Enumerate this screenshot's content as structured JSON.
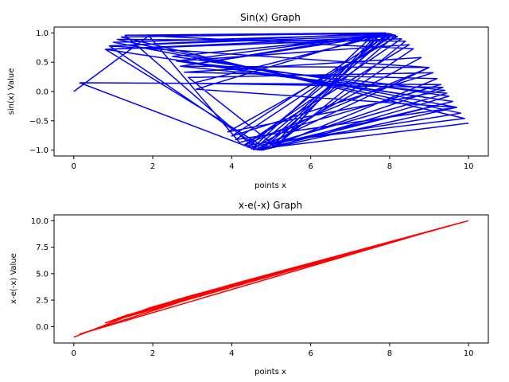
{
  "chart_data": [
    {
      "type": "line",
      "title": "Sin(x) Graph",
      "xlabel": "points x",
      "ylabel": "sin(x) Value",
      "xlim": [
        -0.5,
        10.5
      ],
      "ylim": [
        -1.1,
        1.1
      ],
      "xticks": [
        "0",
        "2",
        "4",
        "6",
        "8",
        "10"
      ],
      "xtick_values": [
        0,
        2,
        4,
        6,
        8,
        10
      ],
      "yticks": [
        "1.0",
        "0.5",
        "0.0",
        "−0.5",
        "−1.0"
      ],
      "ytick_values": [
        1.0,
        0.5,
        0.0,
        -0.5,
        -1.0
      ],
      "grid": false,
      "color": "#0000ff",
      "series": [
        {
          "x": [
            0.0,
            1.9,
            8.0,
            4.7,
            9.6,
            0.8,
            8.3,
            4.3,
            9.9,
            1.2,
            7.9,
            2.7,
            9.0,
            4.6,
            0.15,
            9.3,
            4.2,
            1.9,
            8.6,
            4.8,
            0.9,
            7.7,
            5.0,
            9.5,
            2.5,
            8.1,
            4.1,
            9.7,
            1.0,
            7.6,
            4.5,
            8.8,
            2.8,
            9.2,
            4.9,
            0.8,
            8.2,
            3.9,
            9.4,
            2.6,
            7.95,
            4.4,
            9.8,
            1.1,
            8.4,
            5.1,
            2.9,
            9.1,
            4.0,
            8.0,
            3.0,
            9.35,
            4.65,
            1.3,
            7.8,
            5.2,
            9.6,
            2.6,
            8.5,
            4.3,
            9.0,
            0.9,
            8.15,
            4.75,
            9.7,
            3.1,
            7.75,
            5.3,
            9.45,
            2.7,
            8.05,
            4.55,
            10.0
          ],
          "y": [
            0.0,
            0.95,
            0.99,
            -1.0,
            -0.17,
            0.72,
            0.9,
            -0.92,
            -0.46,
            0.93,
            1.0,
            0.43,
            0.41,
            -0.99,
            0.15,
            0.12,
            -0.87,
            0.95,
            0.73,
            -1.0,
            0.78,
            0.99,
            -0.96,
            -0.08,
            0.6,
            0.97,
            -0.82,
            -0.27,
            0.84,
            0.97,
            -0.98,
            0.58,
            0.33,
            0.22,
            -0.98,
            0.72,
            0.94,
            -0.69,
            0.02,
            0.52,
            0.99,
            -0.95,
            -0.37,
            0.89,
            0.86,
            -0.93,
            0.24,
            0.32,
            -0.76,
            0.99,
            0.14,
            0.07,
            -1.0,
            0.96,
            1.0,
            -0.88,
            -0.17,
            0.52,
            0.8,
            -0.92,
            0.41,
            0.78,
            0.96,
            -1.0,
            -0.27,
            0.04,
            0.99,
            -0.83,
            -0.03,
            0.43,
            0.98,
            -0.99,
            -0.54
          ]
        }
      ]
    },
    {
      "type": "line",
      "title": "x-e(-x) Graph",
      "xlabel": "points x",
      "ylabel": "x-e(-x) Value",
      "xlim": [
        -0.5,
        10.5
      ],
      "ylim": [
        -1.55,
        10.55
      ],
      "xticks": [
        "0",
        "2",
        "4",
        "6",
        "8",
        "10"
      ],
      "xtick_values": [
        0,
        2,
        4,
        6,
        8,
        10
      ],
      "yticks": [
        "10.0",
        "7.5",
        "5.0",
        "2.5",
        "0.0"
      ],
      "ytick_values": [
        10.0,
        7.5,
        5.0,
        2.5,
        0.0
      ],
      "grid": false,
      "color": "#ff0000",
      "series": [
        {
          "x": [
            0.0,
            1.9,
            8.0,
            4.7,
            9.6,
            0.8,
            8.3,
            4.3,
            9.9,
            1.2,
            7.9,
            2.7,
            9.0,
            4.6,
            0.15,
            9.3,
            4.2,
            1.9,
            8.6,
            4.8,
            0.9,
            7.7,
            5.0,
            9.5,
            2.5,
            8.1,
            4.1,
            9.7,
            1.0,
            7.6,
            4.5,
            8.8,
            2.8,
            9.2,
            4.9,
            0.8,
            8.2,
            3.9,
            9.4,
            2.6,
            7.95,
            4.4,
            9.8,
            1.1,
            8.4,
            5.1,
            2.9,
            9.1,
            4.0,
            8.0,
            3.0,
            9.35,
            4.65,
            1.3,
            7.8,
            5.2,
            9.6,
            2.6,
            8.5,
            4.3,
            9.0,
            0.9,
            8.15,
            4.75,
            9.7,
            3.1,
            7.75,
            5.3,
            9.45,
            2.7,
            8.05,
            4.55,
            10.0
          ],
          "y": [
            -1.0,
            1.75,
            8.0,
            4.69,
            9.6,
            0.35,
            8.3,
            4.29,
            9.9,
            0.9,
            7.9,
            2.63,
            9.0,
            4.59,
            -0.71,
            9.3,
            4.19,
            1.75,
            8.6,
            4.79,
            0.49,
            7.7,
            4.99,
            9.5,
            2.42,
            8.1,
            4.08,
            9.7,
            0.63,
            7.6,
            4.49,
            8.8,
            2.74,
            9.2,
            4.89,
            0.35,
            8.2,
            3.88,
            9.4,
            2.53,
            7.95,
            4.39,
            9.8,
            0.77,
            8.4,
            5.09,
            2.85,
            9.1,
            3.98,
            8.0,
            2.95,
            9.35,
            4.64,
            1.03,
            7.8,
            5.19,
            9.6,
            2.53,
            8.5,
            4.29,
            9.0,
            0.49,
            8.15,
            4.74,
            9.7,
            3.05,
            7.75,
            5.3,
            9.45,
            2.63,
            8.05,
            4.54,
            10.0
          ]
        }
      ]
    }
  ]
}
